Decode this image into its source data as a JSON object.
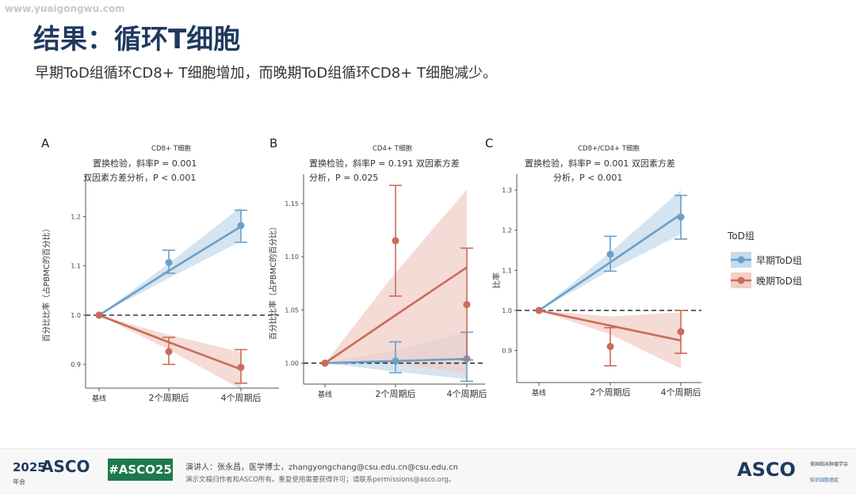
{
  "watermark": "www.yuaigongwu.com",
  "title": "结果：循环T细胞",
  "subtitle": "早期ToD组循环CD8+ T细胞增加，而晚期ToD组循环CD8+ T细胞减少。",
  "colors": {
    "early": "#6a9fc8",
    "late": "#cc6b5a",
    "early_band": "#c6dbec",
    "late_band": "#f0cfc8"
  },
  "legend": {
    "title": "ToD组",
    "early": "早期ToD组",
    "late": "晚期ToD组"
  },
  "chart_data": [
    {
      "type": "line",
      "panel": "A",
      "title": "CD8+ T细胞",
      "annotation_line1": "置换检验，斜率P = 0.001",
      "annotation_line2": "双因素方差分析，P < 0.001",
      "ylabel": "百分比比率（占PBMC的百分比）",
      "categories": [
        "基线",
        "2个周期后",
        "4个周期后"
      ],
      "ylim": [
        0.86,
        1.27
      ],
      "yticks": [
        0.9,
        1.0,
        1.1,
        1.2
      ],
      "ytick_labels": [
        "0.9",
        "1.0",
        "1.1",
        "1.2"
      ],
      "reference_line": 1.0,
      "series": [
        {
          "name": "早期ToD组",
          "means": [
            1.0,
            1.107,
            1.182
          ],
          "err_low": [
            1.0,
            1.085,
            1.148
          ],
          "err_high": [
            1.0,
            1.132,
            1.213
          ],
          "fit": [
            1.0,
            1.09,
            1.18
          ],
          "band_low": [
            1.0,
            1.075,
            1.15
          ],
          "band_high": [
            1.0,
            1.105,
            1.22
          ]
        },
        {
          "name": "晚期ToD组",
          "means": [
            1.0,
            0.926,
            0.894
          ],
          "err_low": [
            1.0,
            0.9,
            0.862
          ],
          "err_high": [
            1.0,
            0.955,
            0.93
          ],
          "fit": [
            1.0,
            0.945,
            0.89
          ],
          "band_low": [
            1.0,
            0.93,
            0.85
          ],
          "band_high": [
            1.0,
            0.96,
            0.925
          ]
        }
      ]
    },
    {
      "type": "line",
      "panel": "B",
      "title": "CD4+ T细胞",
      "annotation_line1": "置换检验，斜率P = 0.191 双因素方差",
      "annotation_line2": "分析，P = 0.025",
      "ylabel": "百分比比率（占PBMC的百分比）",
      "categories": [
        "基线",
        "2个周期后",
        "4个周期后"
      ],
      "ylim": [
        0.984,
        1.17
      ],
      "yticks": [
        1.0,
        1.05,
        1.1,
        1.15
      ],
      "ytick_labels": [
        "1.00",
        "1.05",
        "1.10",
        "1.15"
      ],
      "reference_line": 1.0,
      "series": [
        {
          "name": "早期ToD组",
          "means": [
            1.0,
            1.002,
            1.004
          ],
          "err_low": [
            1.0,
            0.991,
            0.983
          ],
          "err_high": [
            1.0,
            1.02,
            1.029
          ],
          "fit": [
            1.0,
            1.002,
            1.004
          ],
          "band_low": [
            1.0,
            0.992,
            0.985
          ],
          "band_high": [
            1.0,
            1.012,
            1.03
          ]
        },
        {
          "name": "晚期ToD组",
          "means": [
            1.0,
            1.115,
            1.055
          ],
          "err_low": [
            1.0,
            1.063,
            1.003
          ],
          "err_high": [
            1.0,
            1.167,
            1.108
          ],
          "fit": [
            1.0,
            1.045,
            1.09
          ],
          "band_low": [
            1.0,
            1.0,
            0.99
          ],
          "band_high": [
            1.0,
            1.085,
            1.163
          ]
        }
      ]
    },
    {
      "type": "line",
      "panel": "C",
      "title": "CD8+/CD4+ T细胞",
      "annotation_line1": "置换检验，斜率P = 0.001 双因素方差",
      "annotation_line2": "分析，P < 0.001",
      "ylabel": "比率",
      "categories": [
        "基线",
        "2个周期后",
        "4个周期后"
      ],
      "ylim": [
        0.83,
        1.32
      ],
      "yticks": [
        0.9,
        1.0,
        1.1,
        1.2,
        1.3
      ],
      "ytick_labels": [
        "0.9",
        "1.0",
        "1.1",
        "1.2",
        "1.3"
      ],
      "reference_line": 1.0,
      "series": [
        {
          "name": "早期ToD组",
          "means": [
            1.0,
            1.14,
            1.233
          ],
          "err_low": [
            1.0,
            1.098,
            1.178
          ],
          "err_high": [
            1.0,
            1.185,
            1.287
          ],
          "fit": [
            1.0,
            1.12,
            1.24
          ],
          "band_low": [
            1.0,
            1.1,
            1.19
          ],
          "band_high": [
            1.0,
            1.145,
            1.3
          ]
        },
        {
          "name": "晚期ToD组",
          "means": [
            1.0,
            0.91,
            0.947
          ],
          "err_low": [
            1.0,
            0.862,
            0.893
          ],
          "err_high": [
            1.0,
            0.957,
            1.0
          ],
          "fit": [
            1.0,
            0.962,
            0.925
          ],
          "band_low": [
            1.0,
            0.94,
            0.855
          ],
          "band_high": [
            1.0,
            0.985,
            0.995
          ]
        }
      ]
    }
  ],
  "footer": {
    "year": "2025",
    "asco": "ASCO",
    "year_sub": "年会",
    "hashtag": "#ASCO25",
    "presenter": "演讲人：张永昌，医学博士，zhangyongchang@csu.edu.cn@csu.edu.cn",
    "copyright": "演示文稿归作者和ASCO所有。重复使用需要获得许可；请联系permissions@asco.org。",
    "right_logo": "ASCO",
    "right_line1": "美国临床肿瘤学会",
    "right_line2": "知识战胜癌症"
  }
}
